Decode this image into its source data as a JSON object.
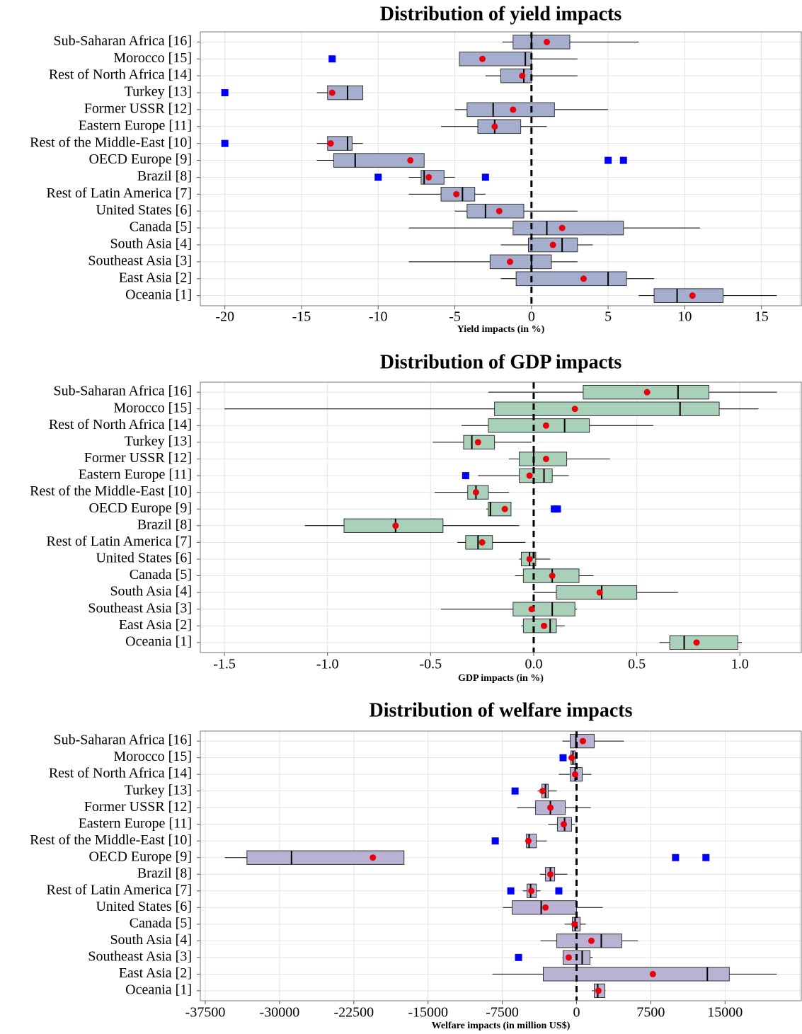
{
  "chart_data": [
    {
      "type": "box",
      "title": "Distribution of yield impacts",
      "x_label": "Yield impacts (in %)",
      "categories": [
        "Sub-Saharan Africa [16]",
        "Morocco [15]",
        "Rest of North Africa [14]",
        "Turkey [13]",
        "Former USSR [12]",
        "Eastern Europe [11]",
        "Rest of the Middle-East [10]",
        "OECD Europe [9]",
        "Brazil [8]",
        "Rest of Latin America [7]",
        "United States [6]",
        "Canada [5]",
        "South Asia [4]",
        "Southeast Asia [3]",
        "East Asia [2]",
        "Oceania [1]"
      ],
      "boxes": [
        {
          "min": -1.9,
          "q1": -1.2,
          "median": 0,
          "q3": 2.5,
          "max": 7.0,
          "mean": 1.0
        },
        {
          "min": -4.7,
          "q1": -4.7,
          "median": -0.4,
          "q3": 0,
          "max": 3.0,
          "mean": -3.2,
          "outliers": [
            -13.0
          ]
        },
        {
          "min": -3.0,
          "q1": -2.0,
          "median": -0.5,
          "q3": 0,
          "max": 3.0,
          "mean": -0.6
        },
        {
          "min": -14.0,
          "q1": -13.3,
          "median": -12.0,
          "q3": -11.0,
          "max": -11.0,
          "mean": -13.0,
          "outliers": [
            -20
          ]
        },
        {
          "min": -5.0,
          "q1": -4.2,
          "median": -2.5,
          "q3": 1.5,
          "max": 5.0,
          "mean": -1.2
        },
        {
          "min": -5.9,
          "q1": -3.5,
          "median": -2.4,
          "q3": -0.7,
          "max": 1.0,
          "mean": -2.4
        },
        {
          "min": -14.0,
          "q1": -13.3,
          "median": -12.0,
          "q3": -11.7,
          "max": -11.0,
          "mean": -13.1,
          "outliers": [
            -20
          ]
        },
        {
          "min": -14.0,
          "q1": -12.9,
          "median": -11.5,
          "q3": -7.0,
          "max": -7.0,
          "mean": -7.9,
          "outliers": [
            5.0,
            6.0
          ]
        },
        {
          "min": -8.0,
          "q1": -7.2,
          "median": -7.0,
          "q3": -5.7,
          "max": -5.0,
          "mean": -6.7,
          "outliers": [
            -10,
            -3.0
          ]
        },
        {
          "min": -8.0,
          "q1": -5.9,
          "median": -4.5,
          "q3": -3.7,
          "max": -3.0,
          "mean": -4.9
        },
        {
          "min": -5.0,
          "q1": -4.2,
          "median": -3.0,
          "q3": -0.5,
          "max": 3.0,
          "mean": -2.1
        },
        {
          "min": -8.0,
          "q1": -1.2,
          "median": 1.0,
          "q3": 6.0,
          "max": 11.0,
          "mean": 2.0
        },
        {
          "min": -2.0,
          "q1": -0.2,
          "median": 2.0,
          "q3": 3.0,
          "max": 4.0,
          "mean": 1.4
        },
        {
          "min": -8.0,
          "q1": -2.7,
          "median": 0,
          "q3": 1.3,
          "max": 3.0,
          "mean": -1.4
        },
        {
          "min": -2.0,
          "q1": -1.0,
          "median": 5.0,
          "q3": 6.2,
          "max": 8.0,
          "mean": 3.4
        },
        {
          "min": 7.0,
          "q1": 8.0,
          "median": 9.5,
          "q3": 12.5,
          "max": 16.0,
          "mean": 10.5
        }
      ],
      "color": "#a5aecd",
      "mean_color": "#e8000b",
      "outlier_color": "#0000ff",
      "xlim": [
        -21.6,
        17.6
      ],
      "xticks": [
        -20,
        -15,
        -10,
        -5,
        0,
        5,
        10,
        15
      ],
      "reference_line": 0,
      "grid": true
    },
    {
      "type": "box",
      "title": "Distribution of GDP impacts",
      "x_label": "GDP impacts (in %)",
      "categories": [
        "Sub-Saharan Africa [16]",
        "Morocco [15]",
        "Rest of North Africa [14]",
        "Turkey [13]",
        "Former USSR [12]",
        "Eastern Europe [11]",
        "Rest of the Middle-East [10]",
        "OECD Europe [9]",
        "Brazil [8]",
        "Rest of Latin America [7]",
        "United States [6]",
        "Canada [5]",
        "South Asia [4]",
        "Southeast Asia [3]",
        "East Asia [2]",
        "Oceania [1]"
      ],
      "boxes": [
        {
          "min": -0.22,
          "q1": 0.24,
          "median": 0.7,
          "q3": 0.85,
          "max": 1.18,
          "mean": 0.55
        },
        {
          "min": -1.5,
          "q1": -0.19,
          "median": 0.71,
          "q3": 0.9,
          "max": 1.09,
          "mean": 0.2
        },
        {
          "min": -0.35,
          "q1": -0.22,
          "median": 0.15,
          "q3": 0.27,
          "max": 0.58,
          "mean": 0.06
        },
        {
          "min": -0.49,
          "q1": -0.34,
          "median": -0.3,
          "q3": -0.19,
          "max": -0.01,
          "mean": -0.27
        },
        {
          "min": -0.12,
          "q1": -0.07,
          "median": 0,
          "q3": 0.16,
          "max": 0.37,
          "mean": 0.06
        },
        {
          "min": -0.27,
          "q1": -0.07,
          "median": 0.05,
          "q3": 0.09,
          "max": 0.17,
          "mean": -0.02,
          "outliers": [
            -0.33
          ]
        },
        {
          "min": -0.48,
          "q1": -0.32,
          "median": -0.28,
          "q3": -0.22,
          "max": -0.12,
          "mean": -0.28
        },
        {
          "min": -0.23,
          "q1": -0.22,
          "median": -0.21,
          "q3": -0.11,
          "max": -0.11,
          "mean": -0.14,
          "outliers": [
            0.1,
            0.115
          ]
        },
        {
          "min": -1.11,
          "q1": -0.92,
          "median": -0.67,
          "q3": -0.44,
          "max": -0.07,
          "mean": -0.67
        },
        {
          "min": -0.37,
          "q1": -0.33,
          "median": -0.27,
          "q3": -0.2,
          "max": -0.04,
          "mean": -0.25
        },
        {
          "min": -0.07,
          "q1": -0.06,
          "median": -0.02,
          "q3": 0.01,
          "max": 0.08,
          "mean": -0.02
        },
        {
          "min": -0.09,
          "q1": -0.05,
          "median": 0.09,
          "q3": 0.22,
          "max": 0.29,
          "mean": 0.09
        },
        {
          "min": 0,
          "q1": 0.11,
          "median": 0.33,
          "q3": 0.5,
          "max": 0.7,
          "mean": 0.32
        },
        {
          "min": -0.45,
          "q1": -0.1,
          "median": 0.09,
          "q3": 0.2,
          "max": 0.21,
          "mean": -0.01
        },
        {
          "min": -0.06,
          "q1": -0.05,
          "median": 0.08,
          "q3": 0.11,
          "max": 0.15,
          "mean": 0.05
        },
        {
          "min": 0.61,
          "q1": 0.66,
          "median": 0.73,
          "q3": 0.99,
          "max": 1.01,
          "mean": 0.79
        }
      ],
      "color": "#a9d1ba",
      "mean_color": "#e8000b",
      "outlier_color": "#0000ff",
      "xlim": [
        -1.617,
        1.298
      ],
      "xticks": [
        -1.5,
        {
          "value": -1.0,
          "label": "-1.0"
        },
        -0.5,
        {
          "value": 0,
          "label": "0.0"
        },
        0.5,
        {
          "value": 1.0,
          "label": "1.0"
        }
      ],
      "reference_line": 0,
      "grid": true
    },
    {
      "type": "box",
      "title": "Distribution of welfare impacts",
      "x_label": "Welfare impacts (in million US$)",
      "categories": [
        "Sub-Saharan Africa [16]",
        "Morocco [15]",
        "Rest of North Africa [14]",
        "Turkey [13]",
        "Former USSR [12]",
        "Eastern Europe [11]",
        "Rest of the Middle-East [10]",
        "OECD Europe [9]",
        "Brazil [8]",
        "Rest of Latin America [7]",
        "United States [6]",
        "Canada [5]",
        "South Asia [4]",
        "Southeast Asia [3]",
        "East Asia [2]",
        "Oceania [1]"
      ],
      "boxes": [
        {
          "min": -1430,
          "q1": -640,
          "median": -70,
          "q3": 1790,
          "max": 4790,
          "mean": 640
        },
        {
          "min": -700,
          "q1": -570,
          "median": -360,
          "q3": -140,
          "max": 0,
          "mean": -500,
          "outliers": [
            -1360
          ]
        },
        {
          "min": -1790,
          "q1": -640,
          "median": -140,
          "q3": 570,
          "max": 1500,
          "mean": -140
        },
        {
          "min": -3930,
          "q1": -3500,
          "median": -3140,
          "q3": -2860,
          "max": -2000,
          "mean": -3430,
          "outliers": [
            -6210
          ]
        },
        {
          "min": -6000,
          "q1": -4140,
          "median": -2640,
          "q3": -1140,
          "max": 1430,
          "mean": -2640
        },
        {
          "min": -2860,
          "q1": -1930,
          "median": -1210,
          "q3": -500,
          "max": -140,
          "mean": -1290
        },
        {
          "min": -5210,
          "q1": -5070,
          "median": -4790,
          "q3": -4070,
          "max": -3000,
          "mean": -4860,
          "outliers": [
            -8210
          ]
        },
        {
          "min": -35500,
          "q1": -33290,
          "median": -28790,
          "q3": -17430,
          "max": -17430,
          "mean": -20570,
          "outliers": [
            10000,
            13070
          ]
        },
        {
          "min": -3710,
          "q1": -3140,
          "median": -2640,
          "q3": -2210,
          "max": -930,
          "mean": -2640
        },
        {
          "min": -5430,
          "q1": -5000,
          "median": -4640,
          "q3": -4070,
          "max": -3640,
          "mean": -4570,
          "outliers": [
            -6640,
            -1790
          ]
        },
        {
          "min": -7430,
          "q1": -6500,
          "median": -3570,
          "q3": 0,
          "max": 2640,
          "mean": -3140
        },
        {
          "min": -1210,
          "q1": -430,
          "median": -140,
          "q3": 360,
          "max": 930,
          "mean": -210
        },
        {
          "min": -3640,
          "q1": -2000,
          "median": 2500,
          "q3": 4570,
          "max": 6210,
          "mean": 1500
        },
        {
          "min": -1430,
          "q1": -1360,
          "median": 570,
          "q3": 1360,
          "max": 1640,
          "mean": -790,
          "outliers": [
            -5860
          ]
        },
        {
          "min": -8500,
          "q1": -3360,
          "median": 13210,
          "q3": 15430,
          "max": 20210,
          "mean": 7710
        },
        {
          "min": 1570,
          "q1": 1790,
          "median": 2140,
          "q3": 2860,
          "max": 2930,
          "mean": 2210
        }
      ],
      "color": "#b9b2d2",
      "mean_color": "#e8000b",
      "outlier_color": "#0000ff",
      "xlim": [
        -38000,
        22700
      ],
      "xticks": [
        -37500,
        -30000,
        -22500,
        -15000,
        -7500,
        0,
        7500,
        15000
      ],
      "reference_line": 0,
      "grid": true
    }
  ]
}
